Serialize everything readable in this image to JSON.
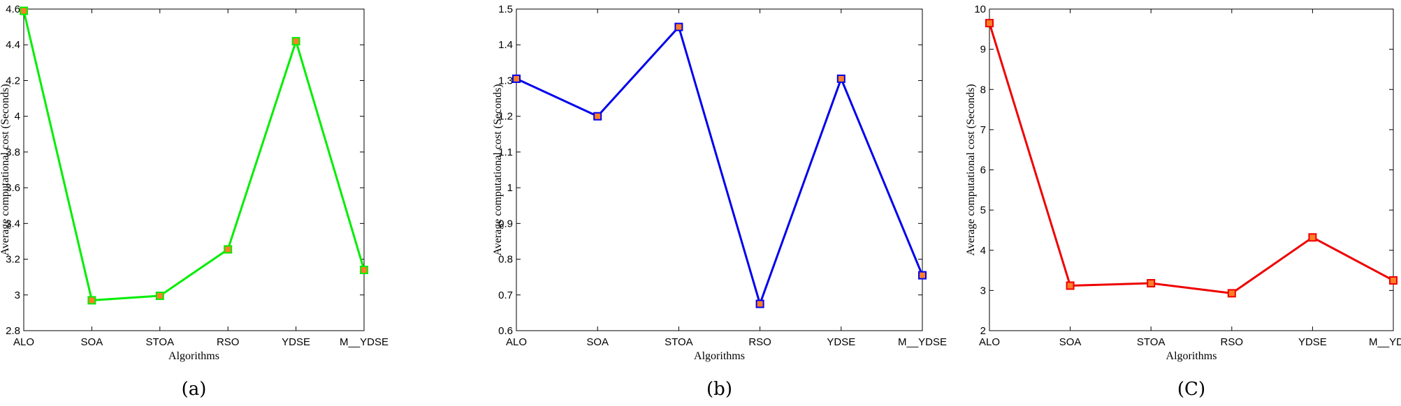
{
  "chart_data": [
    {
      "type": "line",
      "caption": "(a)",
      "xlabel": "Algorithms",
      "ylabel": "Average computational cost (Seconds)",
      "categories": [
        "ALO",
        "SOA",
        "STOA",
        "RSO",
        "YDSE",
        "M__YDSE"
      ],
      "values": [
        4.59,
        2.97,
        2.995,
        3.255,
        4.42,
        3.14
      ],
      "ylim": [
        2.8,
        4.6
      ],
      "yticks": [
        2.8,
        3,
        3.2,
        3.4,
        3.6,
        3.8,
        4,
        4.2,
        4.4,
        4.6
      ],
      "ytick_labels": [
        "2.8",
        "3",
        "3.2",
        "3.4",
        "3.6",
        "3.8",
        "4",
        "4.2",
        "4.4",
        "4.6"
      ],
      "line_color": "#00ee00",
      "marker_fill": "#ff7f27",
      "marker_edge": "#00ee00",
      "grid": false
    },
    {
      "type": "line",
      "caption": "(b)",
      "xlabel": "Algorithms",
      "ylabel": "Average computational cost (Seconds)",
      "categories": [
        "ALO",
        "SOA",
        "STOA",
        "RSO",
        "YDSE",
        "M__YDSE"
      ],
      "values": [
        1.305,
        1.2,
        1.45,
        0.675,
        1.305,
        0.755
      ],
      "ylim": [
        0.6,
        1.5
      ],
      "yticks": [
        0.6,
        0.7,
        0.8,
        0.9,
        1.0,
        1.1,
        1.2,
        1.3,
        1.4,
        1.5
      ],
      "ytick_labels": [
        "0.6",
        "0.7",
        "0.8",
        "0.9",
        "1",
        "1.1",
        "1.2",
        "1.3",
        "1.4",
        "1.5"
      ],
      "line_color": "#0000ee",
      "marker_fill": "#ff7f27",
      "marker_edge": "#0000ee",
      "grid": false
    },
    {
      "type": "line",
      "caption": "(C)",
      "xlabel": "Algorithms",
      "ylabel": "Average computational cost (Seconds)",
      "categories": [
        "ALO",
        "SOA",
        "STOA",
        "RSO",
        "YDSE",
        "M__YDSE"
      ],
      "values": [
        9.65,
        3.12,
        3.18,
        2.93,
        4.32,
        3.25
      ],
      "ylim": [
        2,
        10
      ],
      "yticks": [
        2,
        3,
        4,
        5,
        6,
        7,
        8,
        9,
        10
      ],
      "ytick_labels": [
        "2",
        "3",
        "4",
        "5",
        "6",
        "7",
        "8",
        "9",
        "10"
      ],
      "line_color": "#ee0000",
      "marker_fill": "#ff7f27",
      "marker_edge": "#ee0000",
      "grid": false
    }
  ]
}
